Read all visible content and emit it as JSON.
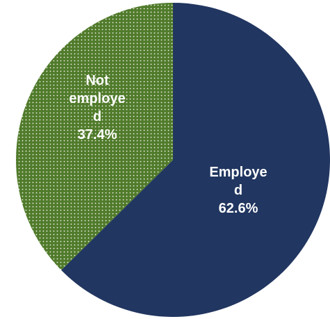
{
  "chart_data": {
    "type": "pie",
    "title": "",
    "slices": [
      {
        "label_lines": [
          "Employe",
          "d"
        ],
        "value": 62.6,
        "value_label": "62.6%",
        "color": "#213660",
        "pattern": "solid",
        "label_color": "#ffffff"
      },
      {
        "label_lines": [
          "Not",
          "employe",
          "d"
        ],
        "value": 37.4,
        "value_label": "37.4%",
        "color": "#507b2b",
        "pattern": "dotted",
        "pattern_dot_color": "#f4f4ec",
        "label_color": "#ffffff"
      }
    ],
    "start_angle": "12 o'clock",
    "direction": "clockwise",
    "legend": "none"
  }
}
